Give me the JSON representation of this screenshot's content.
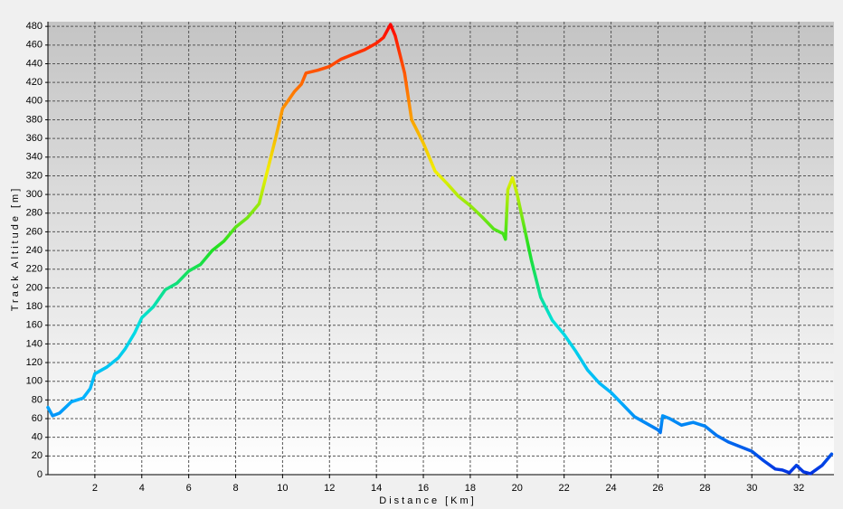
{
  "chart_data": {
    "type": "line",
    "xlabel": "Distance [Km]",
    "ylabel": "Track Altitude [m]",
    "xlim": [
      0,
      33.5
    ],
    "ylim": [
      0,
      485
    ],
    "xticks": [
      2,
      4,
      6,
      8,
      10,
      12,
      14,
      16,
      18,
      20,
      22,
      24,
      26,
      28,
      30,
      32
    ],
    "yticks": [
      0,
      20,
      40,
      60,
      80,
      100,
      120,
      140,
      160,
      180,
      200,
      220,
      240,
      260,
      280,
      300,
      320,
      340,
      360,
      380,
      400,
      420,
      440,
      460,
      480
    ],
    "grid": true,
    "color_scale": [
      "#0030e0",
      "#00b0ff",
      "#00e0e0",
      "#20e020",
      "#f0f000",
      "#ff8000",
      "#ff0000"
    ],
    "x": [
      0,
      0.2,
      0.5,
      1,
      1.5,
      1.8,
      2,
      2.5,
      3,
      3.3,
      3.7,
      4,
      4.5,
      5,
      5.5,
      6,
      6.5,
      7,
      7.5,
      8,
      8.5,
      9,
      9.3,
      9.7,
      10,
      10.5,
      10.8,
      11,
      11.5,
      12,
      12.5,
      13,
      13.5,
      14,
      14.3,
      14.6,
      14.8,
      15.2,
      15.5,
      16,
      16.5,
      17,
      17.5,
      18,
      18.5,
      19,
      19.4,
      19.5,
      19.6,
      19.8,
      20,
      20.3,
      20.6,
      21,
      21.5,
      22,
      22.5,
      23,
      23.5,
      24,
      24.5,
      25,
      25.5,
      26,
      26.1,
      26.2,
      26.5,
      27,
      27.5,
      28,
      28.5,
      29,
      29.5,
      30,
      30.5,
      31,
      31.3,
      31.6,
      31.9,
      32.2,
      32.5,
      33,
      33.4
    ],
    "values": [
      72,
      63,
      66,
      78,
      82,
      92,
      108,
      115,
      125,
      135,
      152,
      168,
      180,
      198,
      205,
      218,
      225,
      240,
      250,
      265,
      275,
      290,
      320,
      360,
      392,
      410,
      418,
      430,
      433,
      437,
      445,
      450,
      455,
      462,
      468,
      482,
      470,
      430,
      380,
      355,
      325,
      312,
      298,
      288,
      276,
      263,
      258,
      252,
      305,
      318,
      300,
      265,
      230,
      190,
      165,
      150,
      132,
      112,
      98,
      88,
      75,
      62,
      55,
      48,
      45,
      63,
      60,
      53,
      56,
      52,
      42,
      35,
      30,
      25,
      15,
      6,
      5,
      2,
      10,
      3,
      1,
      10,
      22
    ]
  }
}
